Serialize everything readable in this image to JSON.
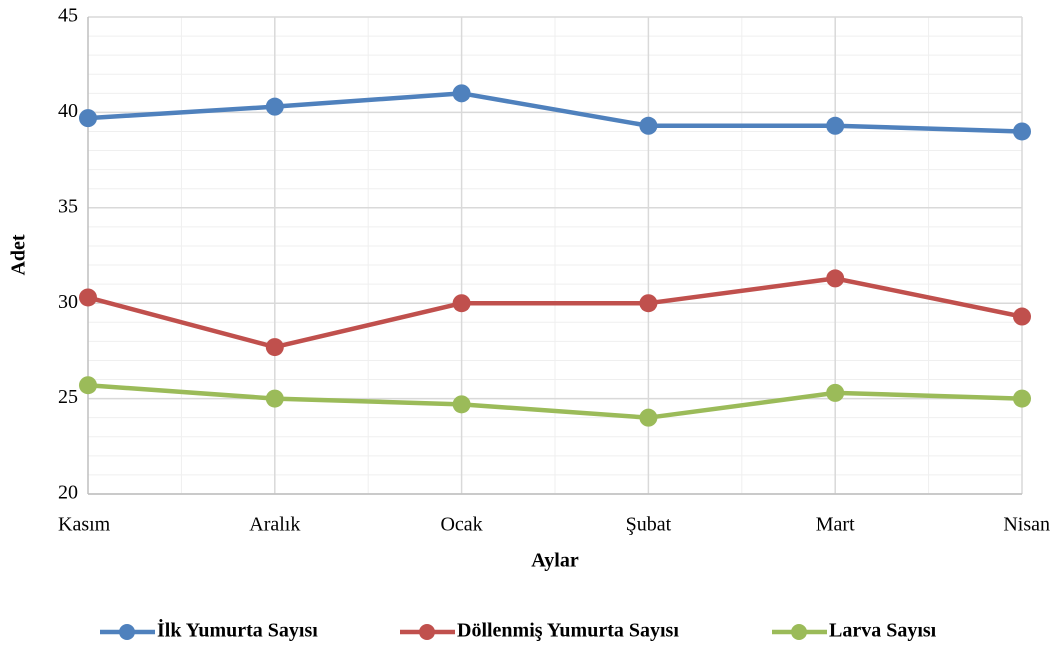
{
  "chart_data": {
    "type": "line",
    "x_label": "Aylar",
    "y_label": "Adet",
    "categories": [
      "Kasım",
      "Aralık",
      "Ocak",
      "Şubat",
      "Mart",
      "Nisan"
    ],
    "series": [
      {
        "name": "İlk Yumurta Sayısı",
        "color": "#4f81bd",
        "values": [
          39.7,
          40.3,
          41,
          39.3,
          39.3,
          39
        ]
      },
      {
        "name": "Döllenmiş Yumurta Sayısı",
        "color": "#c0504d",
        "values": [
          30.3,
          27.7,
          30,
          30,
          31.3,
          29.3
        ]
      },
      {
        "name": "Larva Sayısı",
        "color": "#9bbb59",
        "values": [
          25.7,
          25,
          24.7,
          24,
          25.3,
          25
        ]
      }
    ],
    "ylim": [
      20,
      45
    ],
    "yticks": [
      20,
      25,
      30,
      35,
      40,
      45
    ],
    "grid": true,
    "legend": "bottom"
  }
}
